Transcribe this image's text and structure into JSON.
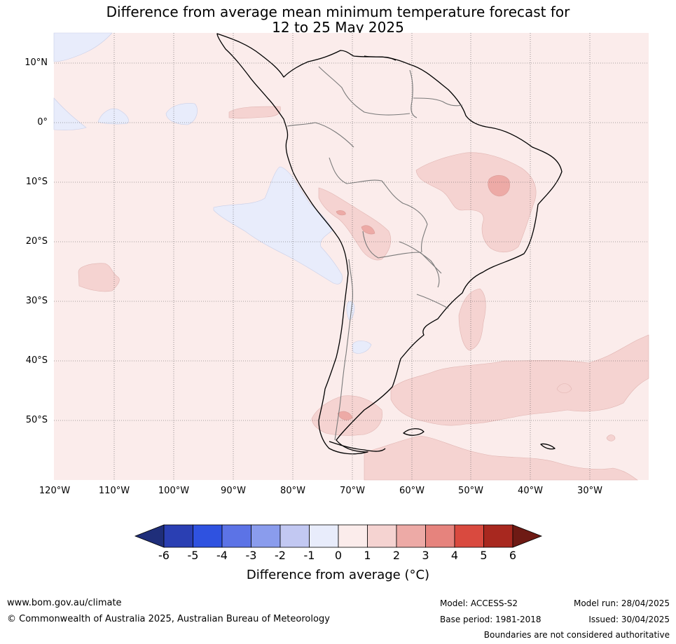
{
  "title": {
    "line1": "Difference from average mean minimum temperature forecast for",
    "line2": "12 to 25 May 2025"
  },
  "axes": {
    "lat_labels": [
      "10°N",
      "0°",
      "10°S",
      "20°S",
      "30°S",
      "40°S",
      "50°S"
    ],
    "lon_labels": [
      "120°W",
      "110°W",
      "100°W",
      "90°W",
      "80°W",
      "70°W",
      "60°W",
      "50°W",
      "40°W",
      "30°W"
    ]
  },
  "colorbar": {
    "labels": [
      "-6",
      "-5",
      "-4",
      "-3",
      "-2",
      "-1",
      "0",
      "1",
      "2",
      "3",
      "4",
      "5",
      "6"
    ],
    "colors": [
      "#1f2e7a",
      "#2a3fb3",
      "#2f52e0",
      "#5c73e6",
      "#8a9ced",
      "#c2c8f2",
      "#e8ecfb",
      "#fbeceb",
      "#f5d3d1",
      "#edaaa6",
      "#e6837d",
      "#d94a3f",
      "#a8281f",
      "#6e1a14"
    ],
    "title": "Difference from average (°C)"
  },
  "footer": {
    "website": "www.bom.gov.au/climate",
    "copyright": "© Commonwealth of Australia 2025, Australian Bureau of Meteorology",
    "model": "Model: ACCESS-S2",
    "base_period": "Base period: 1981-2018",
    "model_run": "Model run: 28/04/2025",
    "issued": "Issued: 30/04/2025",
    "disclaimer": "Boundaries are not considered authoritative"
  }
}
